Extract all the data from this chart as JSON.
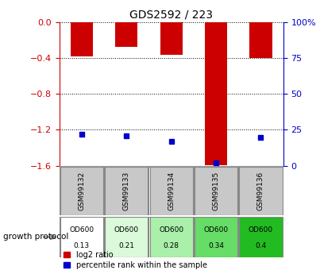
{
  "title": "GDS2592 / 223",
  "samples": [
    "GSM99132",
    "GSM99133",
    "GSM99134",
    "GSM99135",
    "GSM99136"
  ],
  "log2_ratio": [
    -0.38,
    -0.28,
    -0.37,
    -1.59,
    -0.4
  ],
  "percentile_rank": [
    22,
    21,
    17,
    2,
    20
  ],
  "od600": [
    "0.13",
    "0.21",
    "0.28",
    "0.34",
    "0.4"
  ],
  "od600_colors": [
    "#ffffff",
    "#dafada",
    "#aaf0aa",
    "#66dd66",
    "#22bb22"
  ],
  "ymin": -1.6,
  "ymax": 0.0,
  "yticks_left": [
    0.0,
    -0.4,
    -0.8,
    -1.2,
    -1.6
  ],
  "yticks_right_vals": [
    0.0,
    -0.4,
    -0.8,
    -1.2,
    -1.6
  ],
  "yticks_right_labels": [
    "100%",
    "75",
    "50",
    "25",
    "0"
  ],
  "bar_color": "#cc0000",
  "blue_color": "#0000cc",
  "bar_width": 0.5,
  "left_axis_color": "#cc0000",
  "right_axis_color": "#0000cc",
  "background_label": "#c8c8c8",
  "growth_protocol_label": "growth protocol",
  "legend_log2": "log2 ratio",
  "legend_pct": "percentile rank within the sample"
}
